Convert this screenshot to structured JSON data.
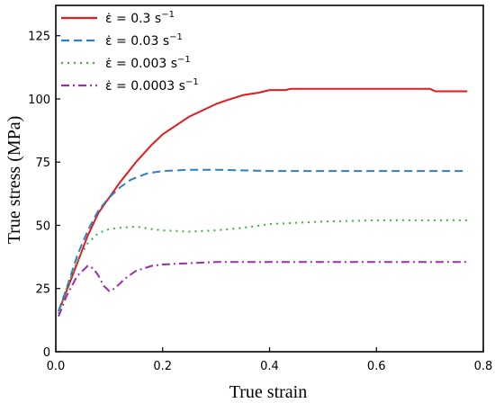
{
  "chart_data": {
    "type": "line",
    "xlabel": "True strain",
    "ylabel": "True stress (MPa)",
    "xlim": [
      0,
      0.8
    ],
    "ylim": [
      0,
      137
    ],
    "x_ticks": [
      0.0,
      0.2,
      0.4,
      0.6,
      0.8
    ],
    "x_tick_labels": [
      "0.0",
      "0.2",
      "0.4",
      "0.6",
      "0.8"
    ],
    "y_ticks": [
      0,
      25,
      50,
      75,
      100,
      125
    ],
    "y_tick_labels": [
      "0",
      "25",
      "50",
      "75",
      "100",
      "125"
    ],
    "grid": false,
    "legend_position": "top-left",
    "series": [
      {
        "name": "ε̇ = 0.3 s⁻¹",
        "legend_label": "ε̇ = 0.3 s",
        "legend_sup": "−1",
        "color": "#e41a1c",
        "dash": "solid",
        "points": [
          [
            0.005,
            16
          ],
          [
            0.02,
            24
          ],
          [
            0.04,
            35
          ],
          [
            0.06,
            46
          ],
          [
            0.08,
            55
          ],
          [
            0.1,
            61
          ],
          [
            0.12,
            67
          ],
          [
            0.15,
            75
          ],
          [
            0.18,
            82
          ],
          [
            0.2,
            86
          ],
          [
            0.25,
            93
          ],
          [
            0.3,
            98
          ],
          [
            0.32,
            99.5
          ],
          [
            0.35,
            101.5
          ],
          [
            0.38,
            102.5
          ],
          [
            0.4,
            103.5
          ],
          [
            0.43,
            103.5
          ],
          [
            0.44,
            104
          ],
          [
            0.5,
            104
          ],
          [
            0.6,
            104
          ],
          [
            0.7,
            104
          ],
          [
            0.71,
            103
          ],
          [
            0.77,
            103
          ]
        ]
      },
      {
        "name": "ε̇ = 0.03 s⁻¹",
        "legend_label": "ε̇ = 0.03 s",
        "legend_sup": "−1",
        "color": "#2c7fc8",
        "dash": "dashed",
        "points": [
          [
            0.005,
            16
          ],
          [
            0.02,
            25
          ],
          [
            0.04,
            38
          ],
          [
            0.06,
            48
          ],
          [
            0.08,
            56
          ],
          [
            0.1,
            61
          ],
          [
            0.12,
            65
          ],
          [
            0.14,
            68
          ],
          [
            0.17,
            70.5
          ],
          [
            0.2,
            71.5
          ],
          [
            0.25,
            72
          ],
          [
            0.3,
            72
          ],
          [
            0.4,
            71.5
          ],
          [
            0.5,
            71.5
          ],
          [
            0.6,
            71.5
          ],
          [
            0.7,
            71.5
          ],
          [
            0.77,
            71.5
          ]
        ]
      },
      {
        "name": "ε̇ = 0.003 s⁻¹",
        "legend_label": "ε̇ = 0.003 s",
        "legend_sup": "−1",
        "color": "#3cb43c",
        "dash": "dotted",
        "points": [
          [
            0.005,
            15
          ],
          [
            0.02,
            25
          ],
          [
            0.04,
            36
          ],
          [
            0.06,
            43
          ],
          [
            0.08,
            47
          ],
          [
            0.1,
            48.5
          ],
          [
            0.12,
            49
          ],
          [
            0.15,
            49.5
          ],
          [
            0.18,
            48.5
          ],
          [
            0.2,
            48
          ],
          [
            0.25,
            47.5
          ],
          [
            0.3,
            48
          ],
          [
            0.35,
            49
          ],
          [
            0.4,
            50.5
          ],
          [
            0.5,
            51.5
          ],
          [
            0.6,
            52
          ],
          [
            0.7,
            52
          ],
          [
            0.77,
            52
          ]
        ]
      },
      {
        "name": "ε̇ = 0.0003 s⁻¹",
        "legend_label": "ε̇ = 0.0003 s",
        "legend_sup": "−1",
        "color": "#9b2fa8",
        "dash": "dashdot",
        "points": [
          [
            0.005,
            14
          ],
          [
            0.02,
            22
          ],
          [
            0.04,
            30
          ],
          [
            0.06,
            34
          ],
          [
            0.07,
            33
          ],
          [
            0.08,
            30
          ],
          [
            0.09,
            26
          ],
          [
            0.1,
            24
          ],
          [
            0.11,
            25
          ],
          [
            0.13,
            29
          ],
          [
            0.15,
            32
          ],
          [
            0.18,
            34
          ],
          [
            0.2,
            34.5
          ],
          [
            0.25,
            35
          ],
          [
            0.3,
            35.5
          ],
          [
            0.4,
            35.5
          ],
          [
            0.5,
            35.5
          ],
          [
            0.6,
            35.5
          ],
          [
            0.7,
            35.5
          ],
          [
            0.77,
            35.5
          ]
        ]
      }
    ]
  }
}
